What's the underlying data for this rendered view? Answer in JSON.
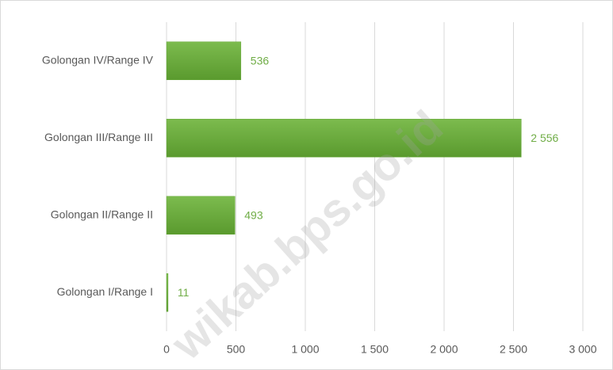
{
  "chart_data": {
    "type": "bar",
    "orientation": "horizontal",
    "categories": [
      "Golongan IV/Range IV",
      "Golongan III/Range III",
      "Golongan II/Range II",
      "Golongan I/Range I"
    ],
    "values": [
      536,
      2556,
      493,
      11
    ],
    "value_labels": [
      "536",
      "2 556",
      "493",
      "11"
    ],
    "color": "#67a93a",
    "xlim": [
      0,
      3000
    ],
    "xticks": [
      0,
      500,
      {
        "value": 1000,
        "label": "1 000"
      },
      {
        "value": 1500,
        "label": "1 500"
      },
      {
        "value": 2000,
        "label": "2 000"
      },
      {
        "value": 2500,
        "label": "2 500"
      },
      {
        "value": 3000,
        "label": "3 000"
      }
    ],
    "grid": true,
    "watermark": "wikab.bps.go.id"
  }
}
